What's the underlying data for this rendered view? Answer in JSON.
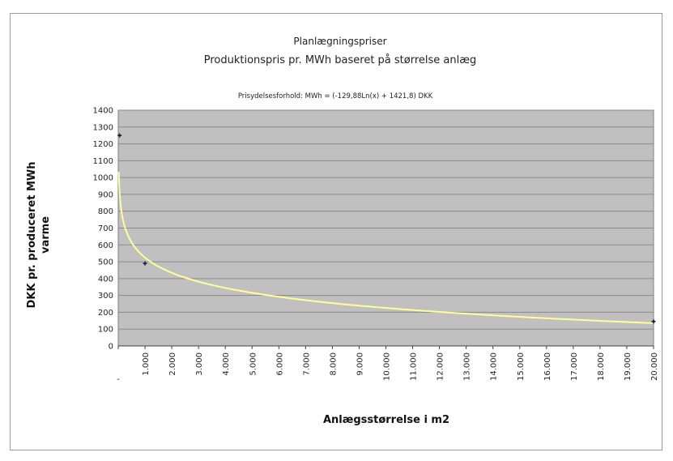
{
  "chart_data": {
    "type": "scatter",
    "title": "Planlægningspriser",
    "subtitle": "Produktionspris pr. MWh baseret på størrelse anlæg",
    "annotation": "Prisydelsesforhold: MWh = (-129,88Ln(x) + 1421,8) DKK",
    "ylabel_line1": "DKK pr. produceret MWh",
    "ylabel_line2": "varme",
    "xlabel": "Anlægsstørrelse i m2",
    "ylim": [
      0,
      1400
    ],
    "yticks": [
      0,
      100,
      200,
      300,
      400,
      500,
      600,
      700,
      800,
      900,
      1000,
      1100,
      1200,
      1300,
      1400
    ],
    "xlim": [
      0,
      20000
    ],
    "xtick_values": [
      0,
      1000,
      2000,
      3000,
      4000,
      5000,
      6000,
      7000,
      8000,
      9000,
      10000,
      11000,
      12000,
      13000,
      14000,
      15000,
      16000,
      17000,
      18000,
      19000,
      20000
    ],
    "xtick_labels": [
      "-",
      "1.000",
      "2.000",
      "3.000",
      "4.000",
      "5.000",
      "6.000",
      "7.000",
      "8.000",
      "9.000",
      "10.000",
      "11.000",
      "12.000",
      "13.000",
      "14.000",
      "15.000",
      "16.000",
      "17.000",
      "18.000",
      "19.000",
      "20.000"
    ],
    "points": [
      {
        "x": 50,
        "y": 1250
      },
      {
        "x": 1000,
        "y": 490
      },
      {
        "x": 20000,
        "y": 145
      }
    ],
    "trendline": {
      "a": -129.88,
      "b": 1421.8,
      "x_start": 20,
      "x_end": 20000
    },
    "grid": true,
    "colors": {
      "plot_background": "#c0c0c0",
      "gridline": "#8a8a8a",
      "trendline": "#ffff99",
      "marker": "#1a1a40"
    }
  }
}
